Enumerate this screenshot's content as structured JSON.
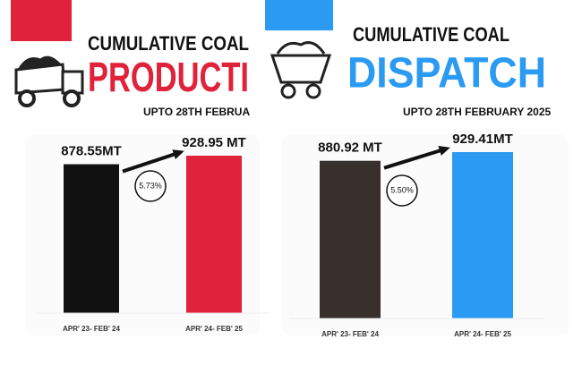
{
  "chart_data": [
    {
      "type": "bar",
      "title": "CUMULATIVE COAL",
      "subtitle": "PRODUCTI",
      "note": "UPTO 28TH FEBRUA",
      "categories": [
        "APR' 23- FEB' 24",
        "APR' 24- FEB' 25"
      ],
      "values": [
        878.55,
        928.95
      ],
      "value_labels": [
        "878.55MT",
        "928.95 MT"
      ],
      "colors": [
        "#111111",
        "#e0223a"
      ],
      "annotation": "5.73%"
    },
    {
      "type": "bar",
      "title": "CUMULATIVE COAL",
      "subtitle": "DISPATCH",
      "note": "UPTO 28TH FEBRUARY 2025",
      "categories": [
        "APR' 23- FEB' 24",
        "APR' 24- FEB' 25"
      ],
      "values": [
        880.92,
        929.41
      ],
      "value_labels": [
        "880.92 MT",
        "929.41MT"
      ],
      "colors": [
        "#37302d",
        "#2b9af3"
      ],
      "annotation": "5.50%"
    }
  ]
}
